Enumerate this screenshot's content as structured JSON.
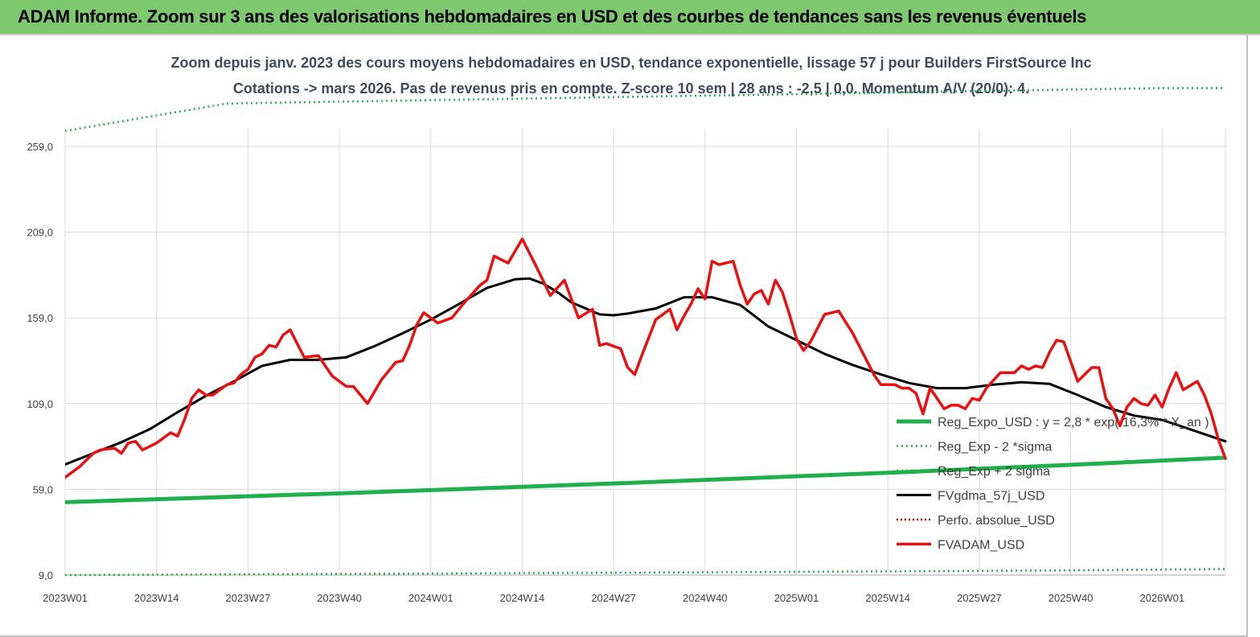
{
  "header": {
    "title": "ADAM Informe. Zoom sur 3 ans des valorisations hebdomadaires en USD et des courbes de tendances sans les revenus éventuels"
  },
  "colors": {
    "header_bg": "#7ec86f",
    "reg_expo": "#1fb04c",
    "sigma": "#1fb04c",
    "fvgdma": "#000000",
    "perfo": "#e00000",
    "fvadam": "#e81010",
    "grid": "#d9d9d9"
  },
  "chart_data": {
    "type": "line",
    "title": "Zoom depuis janv. 2023 des cours moyens hebdomadaires en USD, tendance exponentielle, lissage 57 j pour Builders FirstSource Inc",
    "subtitle": "Cotations -> mars 2026. Pas de revenus pris en compte. Z-score 10 sem | 28 ans : -2,5 | 0,0. Momentum A/V (20/0): 4.",
    "xlabel": "",
    "ylabel": "",
    "ylim": [
      9,
      279
    ],
    "y_ticks": [
      "9,0",
      "59,0",
      "109,0",
      "159,0",
      "209,0",
      "259,0"
    ],
    "y_tick_values": [
      9,
      59,
      109,
      159,
      209,
      259
    ],
    "x_ticks": [
      "2023W01",
      "2023W14",
      "2023W27",
      "2023W40",
      "2024W01",
      "2024W14",
      "2024W27",
      "2024W40",
      "2025W01",
      "2025W14",
      "2025W27",
      "2025W40",
      "2026W01"
    ],
    "x_tick_index": [
      0,
      13,
      26,
      39,
      52,
      65,
      78,
      91,
      104,
      117,
      130,
      143,
      156
    ],
    "legend_position": "bottom-right",
    "grid": true,
    "series": [
      {
        "name": "Reg_Expo_USD : y = 2,8 * exp( 16,3% *  X_an )",
        "style": "thick",
        "x_index": [
          0,
          40,
          80,
          120,
          145,
          165
        ],
        "values": [
          51.5,
          56.8,
          62.7,
          69.2,
          73.7,
          77.5
        ]
      },
      {
        "name": "Reg_Exp - 2 *sigma",
        "style": "dotted",
        "x_index": [
          0,
          40,
          80,
          120,
          145,
          165
        ],
        "values": [
          9.0,
          9.7,
          10.4,
          11.2,
          11.8,
          12.5
        ]
      },
      {
        "name": "Reg_Exp + 2 sigma",
        "style": "dotted",
        "x_index": [
          0,
          23,
          156,
          165
        ],
        "values": [
          268.0,
          284.0,
          293.0,
          293.0
        ]
      },
      {
        "name": "FVgdma_57j_USD",
        "style": "solid",
        "x_index": [
          0,
          4,
          8,
          12,
          16,
          20,
          24,
          28,
          32,
          36,
          40,
          44,
          48,
          52,
          56,
          60,
          64,
          66,
          68,
          70,
          72,
          76,
          78,
          80,
          84,
          88,
          92,
          96,
          100,
          104,
          108,
          112,
          116,
          120,
          124,
          126,
          128,
          132,
          136,
          140,
          144,
          148,
          152,
          156,
          160,
          165
        ],
        "values": [
          73.5,
          80.0,
          86.5,
          94.0,
          104.0,
          113.5,
          122.0,
          131.0,
          134.5,
          134.5,
          136.0,
          142.5,
          150.0,
          158.0,
          167.0,
          176.5,
          181.5,
          182.0,
          179.0,
          174.0,
          168.0,
          161.0,
          160.5,
          161.5,
          164.5,
          171.0,
          171.0,
          166.5,
          154.0,
          146.0,
          138.0,
          131.5,
          126.0,
          121.0,
          118.0,
          118.0,
          118.0,
          120.0,
          121.5,
          120.5,
          114.0,
          107.0,
          102.0,
          99.5,
          94.0,
          87.0
        ]
      },
      {
        "name": "Perfo. absolue_USD",
        "style": "dotted",
        "x_index": [],
        "values": []
      },
      {
        "name": "FVADAM_USD",
        "style": "solid",
        "x_index": [
          0,
          2,
          4,
          5,
          7,
          8,
          9,
          10,
          11,
          13,
          15,
          16,
          17,
          18,
          19,
          20,
          21,
          23,
          24,
          25,
          26,
          27,
          28,
          29,
          30,
          31,
          32,
          33,
          34,
          36,
          38,
          40,
          41,
          43,
          45,
          47,
          48,
          49,
          50,
          51,
          53,
          55,
          57,
          59,
          60,
          61,
          63,
          64,
          65,
          67,
          69,
          71,
          73,
          75,
          76,
          77,
          79,
          80,
          81,
          82,
          84,
          86,
          87,
          88,
          89,
          90,
          91,
          92,
          93,
          95,
          96,
          97,
          98,
          99,
          100,
          101,
          102,
          103,
          104,
          105,
          106,
          108,
          110,
          112,
          114,
          115,
          116,
          117,
          118,
          119,
          120,
          121,
          122,
          123,
          125,
          126,
          127,
          128,
          129,
          130,
          131,
          133,
          135,
          136,
          137,
          138,
          139,
          140,
          141,
          142,
          144,
          146,
          147,
          148,
          149,
          150,
          151,
          152,
          153,
          154,
          155,
          156,
          157,
          158,
          159,
          161,
          162,
          163,
          164,
          165
        ],
        "values": [
          66,
          72,
          80,
          82,
          83,
          80,
          86,
          87,
          82,
          86,
          92,
          90,
          100,
          112,
          117,
          114,
          114,
          120,
          121,
          126,
          129,
          136,
          138,
          143,
          142,
          149,
          152,
          144,
          136,
          137,
          125,
          119,
          119,
          109,
          123,
          133,
          134,
          143,
          155,
          162,
          156,
          159,
          169,
          178,
          181,
          195,
          191,
          198,
          205,
          189,
          172,
          181,
          159,
          164,
          143,
          144,
          141,
          130,
          126,
          137,
          158,
          164,
          152,
          160,
          167,
          176,
          170,
          192,
          190,
          192,
          178,
          167,
          173,
          175,
          167,
          181,
          174,
          161,
          147,
          140,
          145,
          161,
          163,
          150,
          134,
          126,
          120,
          120,
          120,
          118,
          118,
          115,
          103,
          118,
          106,
          108,
          108,
          106,
          112,
          111,
          118,
          127,
          127,
          131,
          129,
          131,
          130,
          139,
          146,
          145,
          122,
          130,
          130,
          112,
          106,
          96,
          107,
          112,
          109,
          108,
          114,
          107,
          118,
          127,
          117,
          122,
          114,
          103,
          88,
          77
        ]
      }
    ]
  }
}
